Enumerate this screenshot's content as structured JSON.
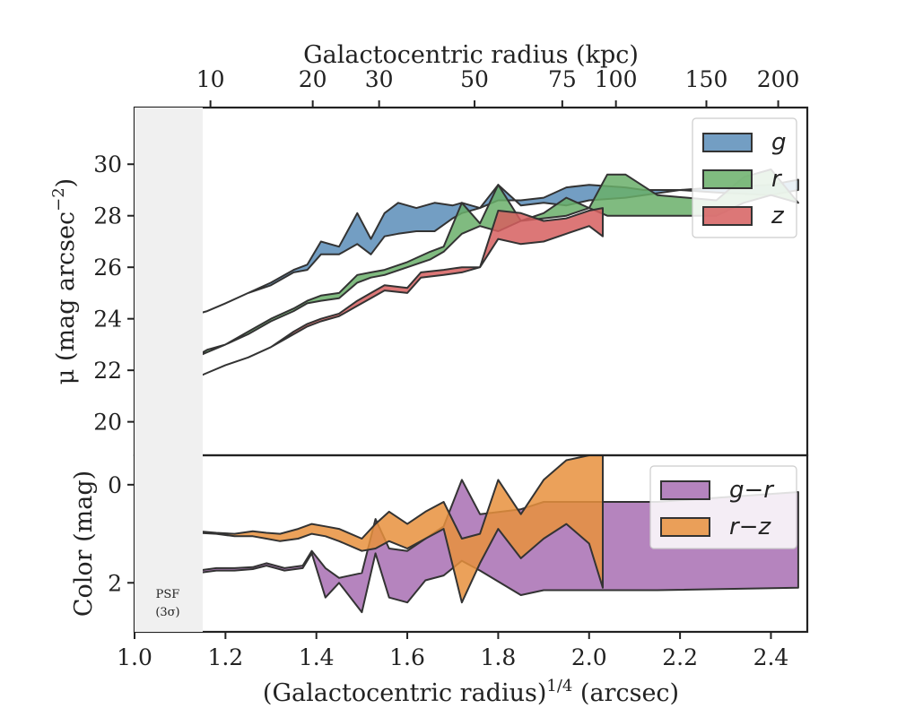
{
  "chart_data": {
    "type": "area",
    "top_axis_label": "Galactocentric radius (kpc)",
    "top_ticks": [
      "10",
      "20",
      "30",
      "50",
      "75",
      "100",
      "150",
      "200"
    ],
    "top_tick_positions": [
      1.167,
      1.392,
      1.538,
      1.748,
      1.941,
      2.059,
      2.258,
      2.416
    ],
    "xlabel_prefix": "(Galactocentric radius)",
    "xlabel_power": "1/4",
    "xlabel_suffix": " (arcsec)",
    "xlim": [
      1.0,
      2.48
    ],
    "xticks": [
      "1.0",
      "1.2",
      "1.4",
      "1.6",
      "1.8",
      "2.0",
      "2.2",
      "2.4"
    ],
    "psf_band_xmax": 1.15,
    "psf_label": "PSF",
    "psf_sigma": "(3σ)",
    "panels": [
      {
        "id": "surface_brightness",
        "ylabel_prefix": "μ (mag arcsec",
        "ylabel_power": "−2",
        "ylabel_suffix": ")",
        "ylim": [
          32.2,
          18.7
        ],
        "yticks": [
          "20",
          "22",
          "24",
          "26",
          "28",
          "30"
        ],
        "ytick_values": [
          20,
          22,
          24,
          26,
          28,
          30
        ],
        "legend_position": "top-right",
        "series": [
          {
            "name": "g",
            "color": "#5b8db8",
            "upper": {
              "x": [
                1.0,
                1.06,
                1.12,
                1.16,
                1.2,
                1.25,
                1.3,
                1.35,
                1.38,
                1.41,
                1.45,
                1.49,
                1.52,
                1.55,
                1.58,
                1.62,
                1.66,
                1.7,
                1.72,
                1.76,
                1.8,
                1.85,
                1.9,
                1.95,
                2.0,
                2.08,
                2.12,
                2.2,
                2.28,
                2.4,
                2.46
              ],
              "y": [
                23.4,
                23.7,
                24.1,
                24.3,
                24.6,
                25.0,
                25.4,
                25.9,
                26.1,
                27.0,
                26.8,
                28.1,
                27.1,
                28.1,
                28.5,
                28.3,
                28.5,
                28.4,
                28.5,
                28.3,
                29.2,
                28.4,
                28.5,
                28.4,
                28.6,
                28.7,
                28.8,
                29.0,
                29.1,
                29.2,
                29.4
              ]
            },
            "lower": {
              "x": [
                1.0,
                1.06,
                1.12,
                1.16,
                1.2,
                1.25,
                1.3,
                1.35,
                1.38,
                1.41,
                1.45,
                1.49,
                1.52,
                1.55,
                1.58,
                1.62,
                1.66,
                1.7,
                1.72,
                1.76,
                1.8,
                1.85,
                1.9,
                1.95,
                2.0,
                2.08,
                2.12,
                2.2,
                2.28,
                2.4,
                2.46
              ],
              "y": [
                23.4,
                23.8,
                24.1,
                24.3,
                24.6,
                25.0,
                25.3,
                25.8,
                25.9,
                26.5,
                26.5,
                26.9,
                26.5,
                27.2,
                27.3,
                27.4,
                27.4,
                27.9,
                28.1,
                28.3,
                28.6,
                28.6,
                28.7,
                29.1,
                29.2,
                29.1,
                29.0,
                29.0,
                28.9,
                28.8,
                29.0
              ]
            }
          },
          {
            "name": "r",
            "color": "#6aaf6a",
            "upper": {
              "x": [
                1.0,
                1.06,
                1.12,
                1.16,
                1.2,
                1.25,
                1.3,
                1.35,
                1.38,
                1.41,
                1.45,
                1.49,
                1.52,
                1.55,
                1.6,
                1.65,
                1.68,
                1.72,
                1.76,
                1.8,
                1.85,
                1.9,
                1.95,
                2.0,
                2.04,
                2.08,
                2.15,
                2.28,
                2.34,
                2.4,
                2.46
              ],
              "y": [
                21.5,
                21.9,
                22.4,
                22.8,
                23.0,
                23.5,
                24.0,
                24.4,
                24.7,
                24.9,
                25.0,
                25.7,
                25.8,
                25.9,
                26.2,
                26.6,
                26.8,
                28.5,
                27.7,
                29.2,
                27.8,
                28.1,
                28.7,
                28.3,
                29.6,
                29.6,
                28.8,
                28.6,
                29.5,
                29.8,
                28.5
              ]
            },
            "lower": {
              "x": [
                1.0,
                1.06,
                1.12,
                1.16,
                1.2,
                1.25,
                1.3,
                1.35,
                1.38,
                1.41,
                1.45,
                1.49,
                1.52,
                1.55,
                1.6,
                1.65,
                1.68,
                1.72,
                1.76,
                1.8,
                1.85,
                1.9,
                1.95,
                2.0,
                2.04,
                2.08,
                2.15,
                2.28,
                2.34,
                2.4,
                2.46
              ],
              "y": [
                21.4,
                21.9,
                22.4,
                22.7,
                23.0,
                23.4,
                23.9,
                24.3,
                24.6,
                24.7,
                24.8,
                25.4,
                25.6,
                25.7,
                26.0,
                26.3,
                26.6,
                27.3,
                27.6,
                27.4,
                27.8,
                27.9,
                28.0,
                28.3,
                28.0,
                28.0,
                28.0,
                28.0,
                28.5,
                28.8,
                28.5
              ]
            }
          },
          {
            "name": "z",
            "color": "#d65f5f",
            "upper": {
              "x": [
                1.0,
                1.06,
                1.12,
                1.16,
                1.2,
                1.25,
                1.3,
                1.35,
                1.38,
                1.41,
                1.45,
                1.49,
                1.52,
                1.55,
                1.6,
                1.63,
                1.68,
                1.72,
                1.76,
                1.8,
                1.85,
                1.9,
                1.95,
                2.0,
                2.03
              ],
              "y": [
                20.6,
                21.1,
                21.6,
                21.9,
                22.2,
                22.5,
                22.9,
                23.5,
                23.8,
                24.0,
                24.2,
                24.7,
                25.0,
                25.3,
                25.2,
                25.8,
                25.9,
                26.0,
                26.0,
                28.2,
                28.1,
                27.8,
                27.9,
                28.2,
                28.3
              ]
            },
            "lower": {
              "x": [
                1.0,
                1.06,
                1.12,
                1.16,
                1.2,
                1.25,
                1.3,
                1.35,
                1.38,
                1.41,
                1.45,
                1.49,
                1.52,
                1.55,
                1.6,
                1.63,
                1.68,
                1.72,
                1.76,
                1.8,
                1.85,
                1.9,
                1.95,
                2.0,
                2.03
              ],
              "y": [
                20.6,
                21.1,
                21.6,
                21.9,
                22.2,
                22.5,
                22.9,
                23.4,
                23.7,
                23.9,
                24.1,
                24.5,
                24.8,
                25.1,
                25.0,
                25.6,
                25.7,
                25.8,
                26.0,
                27.1,
                26.9,
                27.0,
                27.3,
                27.6,
                27.2
              ]
            }
          }
        ]
      },
      {
        "id": "color",
        "ylabel_prefix": "Color (mag)",
        "ylabel_power": "",
        "ylabel_suffix": "",
        "ylim": [
          -0.6,
          3.0
        ],
        "yticks": [
          "0",
          "2"
        ],
        "ytick_values": [
          0,
          2
        ],
        "legend_position": "top-right",
        "series": [
          {
            "name": "g−r",
            "color": "#a86fb3",
            "upper": {
              "x": [
                1.0,
                1.04,
                1.1,
                1.14,
                1.18,
                1.22,
                1.26,
                1.29,
                1.33,
                1.37,
                1.39,
                1.42,
                1.45,
                1.5,
                1.53,
                1.56,
                1.6,
                1.64,
                1.68,
                1.72,
                1.76,
                1.85,
                1.9,
                2.0,
                2.15,
                2.46
              ],
              "y": [
                2.0,
                1.9,
                1.85,
                1.8,
                1.75,
                1.75,
                1.72,
                1.65,
                1.75,
                1.7,
                1.4,
                2.3,
                2.0,
                2.6,
                1.4,
                2.3,
                2.4,
                1.95,
                1.85,
                1.55,
                1.75,
                2.25,
                2.15,
                2.15,
                2.15,
                2.1
              ]
            },
            "lower": {
              "x": [
                1.0,
                1.04,
                1.1,
                1.14,
                1.18,
                1.22,
                1.26,
                1.29,
                1.33,
                1.37,
                1.39,
                1.42,
                1.45,
                1.5,
                1.53,
                1.56,
                1.6,
                1.64,
                1.68,
                1.72,
                1.76,
                1.85,
                1.9,
                2.0,
                2.15,
                2.46
              ],
              "y": [
                1.95,
                1.85,
                1.82,
                1.75,
                1.7,
                1.7,
                1.68,
                1.6,
                1.7,
                1.65,
                1.35,
                1.7,
                1.9,
                1.8,
                0.7,
                1.3,
                1.35,
                1.1,
                0.85,
                -0.1,
                0.6,
                0.5,
                0.35,
                0.35,
                0.35,
                0.15
              ]
            }
          },
          {
            "name": "r−z",
            "color": "#e8903d",
            "upper": {
              "x": [
                1.0,
                1.04,
                1.1,
                1.14,
                1.18,
                1.22,
                1.26,
                1.29,
                1.32,
                1.36,
                1.39,
                1.42,
                1.45,
                1.5,
                1.53,
                1.56,
                1.6,
                1.64,
                1.68,
                1.72,
                1.76,
                1.8,
                1.85,
                1.9,
                1.95,
                2.0,
                2.03
              ],
              "y": [
                0.9,
                0.92,
                0.95,
                0.98,
                1.0,
                1.05,
                1.05,
                1.1,
                1.15,
                1.1,
                1.0,
                1.05,
                1.15,
                1.35,
                1.3,
                1.15,
                1.3,
                1.1,
                0.9,
                2.4,
                1.6,
                0.9,
                1.5,
                1.1,
                0.8,
                1.2,
                2.1
              ]
            },
            "lower": {
              "x": [
                1.0,
                1.04,
                1.1,
                1.14,
                1.18,
                1.22,
                1.26,
                1.29,
                1.32,
                1.36,
                1.39,
                1.42,
                1.45,
                1.5,
                1.53,
                1.56,
                1.6,
                1.64,
                1.68,
                1.72,
                1.76,
                1.8,
                1.85,
                1.9,
                1.95,
                2.0,
                2.03
              ],
              "y": [
                0.85,
                0.88,
                0.92,
                0.95,
                0.98,
                1.0,
                0.95,
                0.98,
                1.0,
                0.9,
                0.8,
                0.85,
                0.9,
                1.1,
                0.8,
                0.55,
                0.8,
                0.55,
                0.35,
                1.1,
                1.0,
                -0.1,
                0.6,
                -0.1,
                -0.5,
                -0.6,
                -0.6
              ]
            }
          }
        ]
      }
    ]
  }
}
